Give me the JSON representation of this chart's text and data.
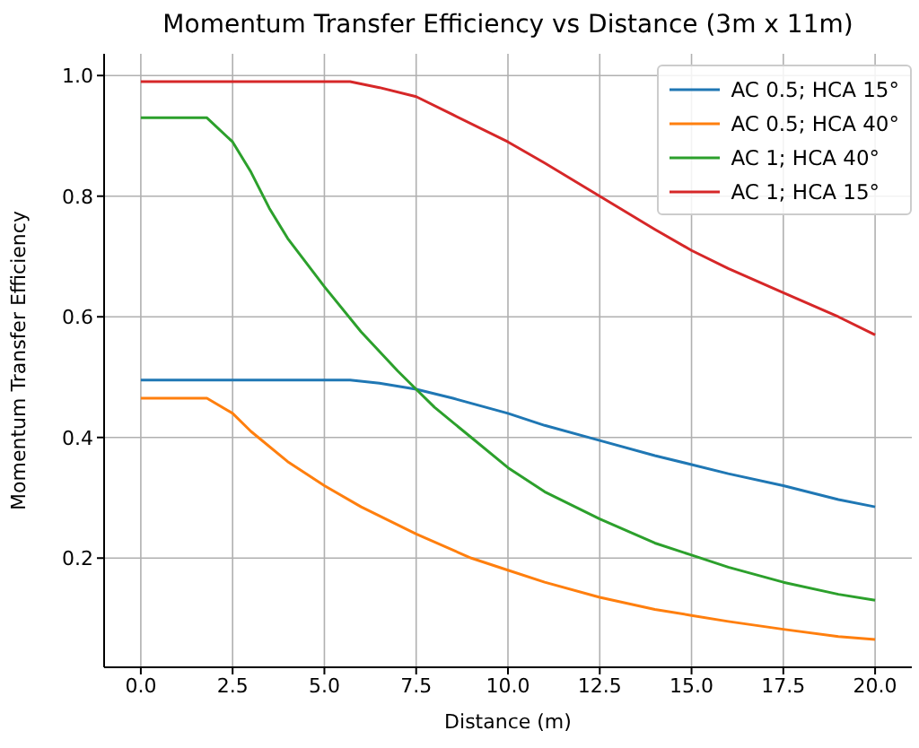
{
  "chart_data": {
    "type": "line",
    "title": "Momentum Transfer Efficiency vs Distance (3m x 11m)",
    "xlabel": "Distance (m)",
    "ylabel": "Momentum Transfer Efficiency",
    "series": [
      {
        "name": "AC 0.5; HCA 15°",
        "color": "#1f77b4",
        "x": [
          0,
          2.5,
          5,
          5.7,
          6.5,
          7.5,
          8.5,
          10,
          11,
          12.5,
          14,
          15,
          16,
          17.5,
          19,
          20
        ],
        "values": [
          0.495,
          0.495,
          0.495,
          0.495,
          0.49,
          0.48,
          0.465,
          0.44,
          0.42,
          0.395,
          0.37,
          0.355,
          0.34,
          0.32,
          0.297,
          0.285
        ]
      },
      {
        "name": "AC 0.5; HCA 40°",
        "color": "#ff7f0e",
        "x": [
          0,
          1,
          1.8,
          2.5,
          3,
          4,
          5,
          6,
          7.5,
          9,
          10,
          11,
          12.5,
          14,
          15,
          16,
          17.5,
          19,
          20
        ],
        "values": [
          0.465,
          0.465,
          0.465,
          0.44,
          0.41,
          0.36,
          0.32,
          0.285,
          0.24,
          0.2,
          0.18,
          0.16,
          0.135,
          0.115,
          0.105,
          0.095,
          0.082,
          0.07,
          0.065
        ]
      },
      {
        "name": "AC 1; HCA 40°",
        "color": "#2ca02c",
        "x": [
          0,
          1,
          1.8,
          2.5,
          3,
          3.5,
          4,
          5,
          6,
          7,
          7.5,
          8,
          9,
          10,
          11,
          12.5,
          14,
          15,
          16,
          17.5,
          19,
          20
        ],
        "values": [
          0.93,
          0.93,
          0.93,
          0.89,
          0.84,
          0.78,
          0.73,
          0.65,
          0.575,
          0.51,
          0.48,
          0.45,
          0.4,
          0.35,
          0.31,
          0.265,
          0.225,
          0.205,
          0.185,
          0.16,
          0.14,
          0.13
        ]
      },
      {
        "name": "AC 1; HCA 15°",
        "color": "#d62728",
        "x": [
          0,
          2.5,
          5,
          5.7,
          6.5,
          7.5,
          8.5,
          10,
          11,
          12.5,
          14,
          15,
          16,
          17.5,
          19,
          20
        ],
        "values": [
          0.99,
          0.99,
          0.99,
          0.99,
          0.98,
          0.965,
          0.935,
          0.89,
          0.855,
          0.8,
          0.745,
          0.71,
          0.68,
          0.64,
          0.6,
          0.57
        ]
      }
    ],
    "xlim": [
      -1,
      21
    ],
    "xticks": [
      {
        "value": 0,
        "label": "0.0"
      },
      {
        "value": 2.5,
        "label": "2.5"
      },
      {
        "value": 5,
        "label": "5.0"
      },
      {
        "value": 7.5,
        "label": "7.5"
      },
      {
        "value": 10,
        "label": "10.0"
      },
      {
        "value": 12.5,
        "label": "12.5"
      },
      {
        "value": 15,
        "label": "15.0"
      },
      {
        "value": 17.5,
        "label": "17.5"
      },
      {
        "value": 20,
        "label": "20.0"
      }
    ],
    "ylim": [
      0.019,
      1.036
    ],
    "yticks": [
      {
        "value": 0.2,
        "label": "0.2"
      },
      {
        "value": 0.4,
        "label": "0.4"
      },
      {
        "value": 0.6,
        "label": "0.6"
      },
      {
        "value": 0.8,
        "label": "0.8"
      },
      {
        "value": 1,
        "label": "1.0"
      }
    ],
    "grid": true,
    "legend": "top right",
    "marker": "none",
    "line_style": "solid"
  }
}
